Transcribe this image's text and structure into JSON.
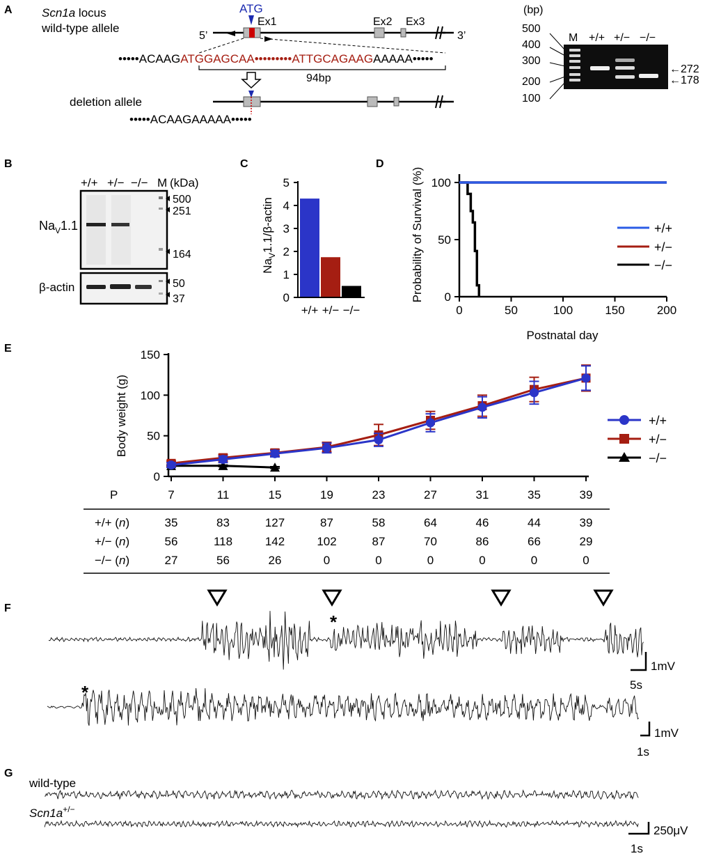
{
  "panels": {
    "a": "A",
    "b": "B",
    "c": "C",
    "d": "D",
    "e": "E",
    "f": "F",
    "g": "G"
  },
  "panel_a": {
    "locus_gene": "Scn1a",
    "locus_suffix": " locus",
    "wt_label": "wild-type allele",
    "atg": "ATG",
    "ex1": "Ex1",
    "ex2": "Ex2",
    "ex3": "Ex3",
    "five_prime": "5’",
    "three_prime": "3’",
    "dots": "•••••",
    "seq_left": "ACAAG",
    "seq_red1": "ATGGAGCAA",
    "seq_mid_dots": "•••••••••",
    "seq_red2": "ATTGCAGAAG",
    "seq_right": "AAAAA",
    "bp94": "94bp",
    "del_label": "deletion allele",
    "del_seq": "ACAAGAAAAA",
    "gel": {
      "unit": "(bp)",
      "ladder": [
        "500",
        "400",
        "300",
        "200",
        "100"
      ],
      "lanes": [
        "M",
        "+/+",
        "+/−",
        "−/−"
      ],
      "band_272": "272",
      "band_178": "178",
      "arrow": "←"
    }
  },
  "panel_b": {
    "lanes": [
      "+/+",
      "+/−",
      "−/−",
      "M"
    ],
    "kda": "(kDa)",
    "top_markers": [
      "500",
      "251",
      "164"
    ],
    "bottom_markers": [
      "50",
      "37"
    ],
    "nav_main": "Na",
    "nav_sub": "V",
    "nav_tail": "1.1",
    "actin": "β-actin"
  },
  "chart_data": [
    {
      "type": "bar",
      "panel": "C",
      "ylabel_main": "Na",
      "ylabel_sub": "V",
      "ylabel_tail": "1.1/β-actin",
      "categories": [
        "+/+",
        "+/−",
        "−/−"
      ],
      "values": [
        4.3,
        1.75,
        0.5
      ],
      "colors": [
        "#2b35c8",
        "#a51e12",
        "#000000"
      ],
      "ylim": [
        0,
        5
      ],
      "yticks": [
        "0",
        "1",
        "2",
        "3",
        "4",
        "5"
      ]
    },
    {
      "type": "line",
      "panel": "D",
      "title": "",
      "ylabel": "Probability of Survival (%)",
      "xlabel": "Postnatal day",
      "xlim": [
        0,
        200
      ],
      "ylim": [
        0,
        100
      ],
      "xticks": [
        "0",
        "50",
        "100",
        "150",
        "200"
      ],
      "yticks": [
        "0",
        "50",
        "100"
      ],
      "legend": [
        "+/+",
        "+/−",
        "−/−"
      ],
      "series": [
        {
          "name": "+/+",
          "color": "#2b5ce6",
          "x": [
            0,
            200
          ],
          "y": [
            100,
            100
          ]
        },
        {
          "name": "+/−",
          "color": "#a51e12",
          "x": [
            0,
            200
          ],
          "y": [
            100,
            100
          ]
        },
        {
          "name": "−/−",
          "color": "#000000",
          "x": [
            0,
            8,
            8,
            11,
            11,
            13,
            13,
            15,
            15,
            17,
            17,
            19,
            19
          ],
          "y": [
            100,
            100,
            90,
            90,
            75,
            75,
            65,
            65,
            40,
            40,
            10,
            10,
            0
          ]
        }
      ]
    },
    {
      "type": "line",
      "panel": "E",
      "ylabel": "Body weight (g)",
      "xlabel": "P",
      "ylim": [
        0,
        150
      ],
      "yticks": [
        "0",
        "50",
        "100",
        "150"
      ],
      "categories": [
        "7",
        "11",
        "15",
        "19",
        "23",
        "27",
        "31",
        "35",
        "39"
      ],
      "legend": [
        "+/+",
        "+/−",
        "−/−"
      ],
      "series": [
        {
          "name": "+/+",
          "color": "#2b35c8",
          "marker": "circle",
          "values": [
            14,
            21,
            28,
            35,
            45,
            66,
            85,
            103,
            121
          ],
          "err": [
            3,
            4,
            4,
            6,
            8,
            11,
            13,
            14,
            15
          ]
        },
        {
          "name": "+/−",
          "color": "#a51e12",
          "marker": "square",
          "values": [
            16,
            23,
            29,
            36,
            51,
            69,
            87,
            107,
            121
          ],
          "err": [
            3,
            4,
            4,
            6,
            13,
            11,
            13,
            15,
            16
          ]
        },
        {
          "name": "−/−",
          "color": "#000000",
          "marker": "triangle",
          "values": [
            13,
            13,
            11,
            null,
            null,
            null,
            null,
            null,
            null
          ],
          "err": [
            1,
            1,
            1,
            0,
            0,
            0,
            0,
            0,
            0
          ]
        }
      ]
    }
  ],
  "panel_e_table": {
    "header": "P",
    "columns": [
      "7",
      "11",
      "15",
      "19",
      "23",
      "27",
      "31",
      "35",
      "39"
    ],
    "rows": [
      {
        "g": "+/+ (",
        "n": "n",
        ")": ")",
        "values": [
          "35",
          "83",
          "127",
          "87",
          "58",
          "64",
          "46",
          "44",
          "39"
        ]
      },
      {
        "g": "+/− (",
        "n": "n",
        ")": ")",
        "values": [
          "56",
          "118",
          "142",
          "102",
          "87",
          "70",
          "86",
          "66",
          "29"
        ]
      },
      {
        "g": "−/− (",
        "n": "n",
        ")": ")",
        "values": [
          "27",
          "56",
          "26",
          "0",
          "0",
          "0",
          "0",
          "0",
          "0"
        ]
      }
    ]
  },
  "panel_f": {
    "asterisk": "*",
    "scale1_v": "1mV",
    "scale1_t": "5s",
    "scale2_v": "1mV",
    "scale2_t": "1s"
  },
  "panel_g": {
    "wt_label": "wild-type",
    "mut_gene": "Scn1a",
    "mut_sup": "+/−",
    "scale_v": "250μV",
    "scale_t": "1s"
  }
}
